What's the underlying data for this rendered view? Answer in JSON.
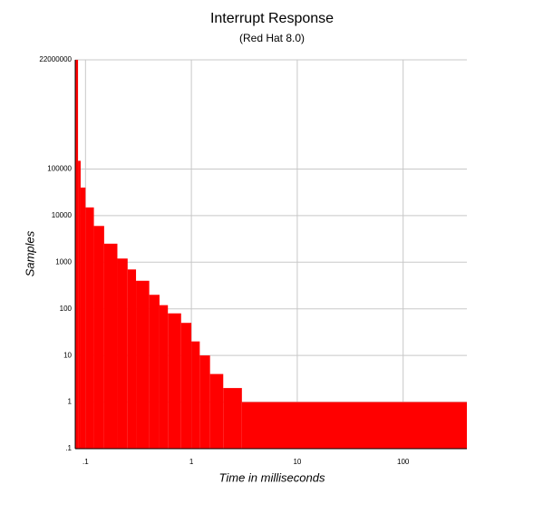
{
  "chart_data": {
    "type": "histogram",
    "title": "Interrupt Response",
    "subtitle": "(Red Hat 8.0)",
    "x_label": "Time in milliseconds",
    "y_label": "Samples",
    "bins": [
      0.08,
      0.085,
      0.09,
      0.1,
      0.12,
      0.15,
      0.2,
      0.25,
      0.3,
      0.4,
      0.5,
      0.6,
      0.8,
      1,
      1.2,
      1.5,
      2,
      3,
      400
    ],
    "counts": [
      22000000,
      150000,
      40000,
      15000,
      6000,
      2500,
      1200,
      700,
      400,
      200,
      120,
      80,
      50,
      20,
      10,
      4,
      2,
      1
    ],
    "color": "#ff0000",
    "x_log": true,
    "y_log": true,
    "grid": true,
    "xlim": [
      0.08,
      400
    ],
    "ylim": [
      0.1,
      22000000
    ],
    "xticks": [
      {
        "value": 0.1,
        "label": ".1"
      },
      1,
      10,
      100
    ],
    "yticks": [
      22000000,
      100000,
      10000,
      1000,
      100,
      10,
      1,
      {
        "value": 0.1,
        "label": ".1"
      }
    ]
  }
}
